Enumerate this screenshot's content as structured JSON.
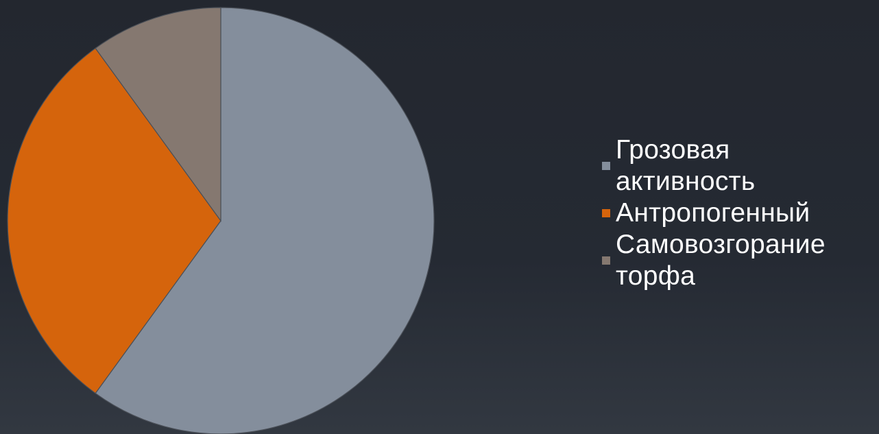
{
  "chart_data": {
    "type": "pie",
    "title": "",
    "legend_position": "right",
    "slices": [
      {
        "label": "Грозовая\nактивность",
        "value": 60,
        "color": "#848e9c"
      },
      {
        "label": "Антропогенный",
        "value": 30,
        "color": "#d5640c"
      },
      {
        "label": "Самовозгорание\nторфа",
        "value": 10,
        "color": "#857870"
      }
    ]
  }
}
